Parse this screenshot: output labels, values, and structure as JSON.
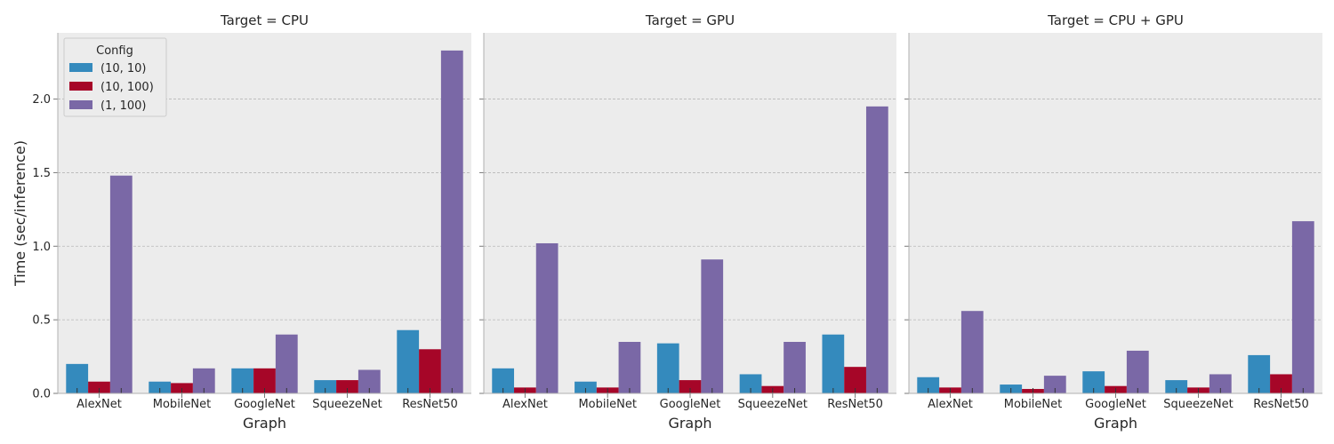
{
  "chart_data": {
    "type": "bar",
    "facet_label": "Target",
    "facets": [
      "CPU",
      "GPU",
      "CPU + GPU"
    ],
    "categories": [
      "AlexNet",
      "MobileNet",
      "GoogleNet",
      "SqueezeNet",
      "ResNet50"
    ],
    "xlabel": "Graph",
    "ylabel": "Time (sec/inference)",
    "ylim": [
      0,
      2.45
    ],
    "yticks": [
      "0.0",
      "0.5",
      "1.0",
      "1.5",
      "2.0"
    ],
    "grid": "horizontal",
    "legend": {
      "title": "Config",
      "placement": "upper-left (first panel)",
      "entries": [
        "(10, 10)",
        "(10, 100)",
        "(1, 100)"
      ]
    },
    "colors": [
      "#348abd",
      "#a60628",
      "#7a68a6"
    ],
    "panels": [
      {
        "target": "CPU",
        "series": [
          {
            "name": "(10, 10)",
            "values": [
              0.2,
              0.08,
              0.17,
              0.09,
              0.43
            ]
          },
          {
            "name": "(10, 100)",
            "values": [
              0.08,
              0.07,
              0.17,
              0.09,
              0.3
            ]
          },
          {
            "name": "(1, 100)",
            "values": [
              1.48,
              0.17,
              0.4,
              0.16,
              2.33
            ]
          }
        ]
      },
      {
        "target": "GPU",
        "series": [
          {
            "name": "(10, 10)",
            "values": [
              0.17,
              0.08,
              0.34,
              0.13,
              0.4
            ]
          },
          {
            "name": "(10, 100)",
            "values": [
              0.04,
              0.04,
              0.09,
              0.05,
              0.18
            ]
          },
          {
            "name": "(1, 100)",
            "values": [
              1.02,
              0.35,
              0.91,
              0.35,
              1.95
            ]
          }
        ]
      },
      {
        "target": "CPU + GPU",
        "series": [
          {
            "name": "(10, 10)",
            "values": [
              0.11,
              0.06,
              0.15,
              0.09,
              0.26
            ]
          },
          {
            "name": "(10, 100)",
            "values": [
              0.04,
              0.03,
              0.05,
              0.04,
              0.13
            ]
          },
          {
            "name": "(1, 100)",
            "values": [
              0.56,
              0.12,
              0.29,
              0.13,
              1.17
            ]
          }
        ]
      }
    ]
  }
}
